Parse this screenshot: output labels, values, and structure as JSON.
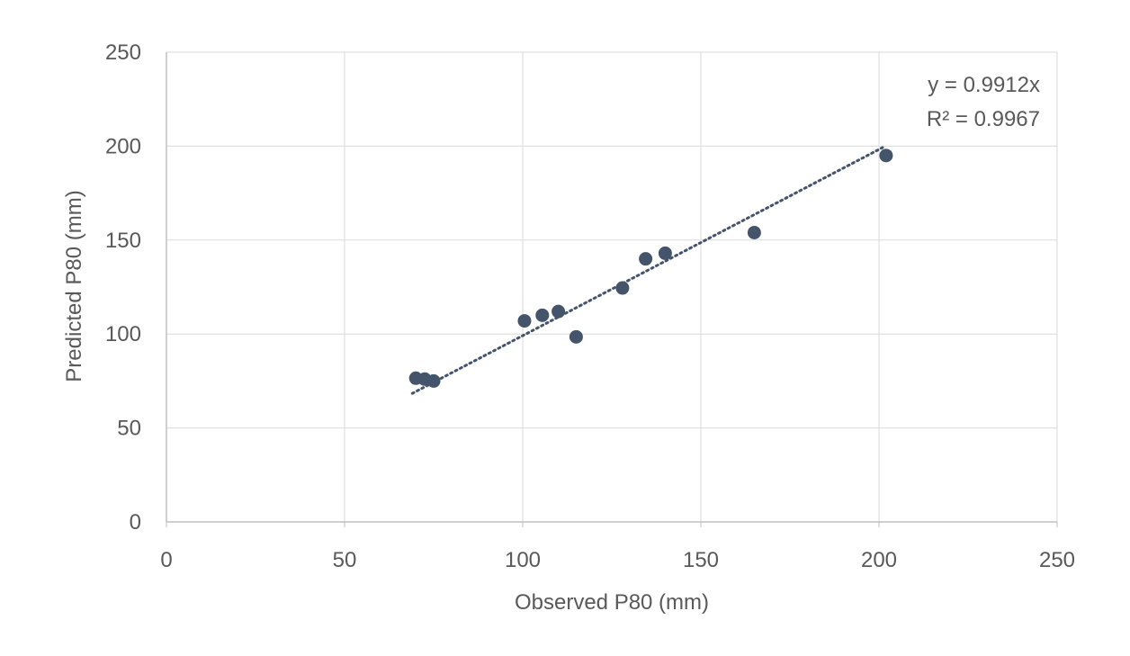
{
  "chart_data": {
    "type": "scatter",
    "title": "",
    "xlabel": "Observed P80 (mm)",
    "ylabel": "Predicted P80 (mm)",
    "xlim": [
      0,
      250
    ],
    "ylim": [
      0,
      250
    ],
    "x_ticks": [
      0,
      50,
      100,
      150,
      200,
      250
    ],
    "y_ticks": [
      0,
      50,
      100,
      150,
      200,
      250
    ],
    "grid": true,
    "legend": "none",
    "series": [
      {
        "points": [
          {
            "x": 70,
            "y": 76.5
          },
          {
            "x": 72.5,
            "y": 76
          },
          {
            "x": 75,
            "y": 75
          },
          {
            "x": 100.5,
            "y": 107
          },
          {
            "x": 105.5,
            "y": 110
          },
          {
            "x": 110,
            "y": 112
          },
          {
            "x": 115,
            "y": 98.5
          },
          {
            "x": 128,
            "y": 124.5
          },
          {
            "x": 134.5,
            "y": 140
          },
          {
            "x": 140,
            "y": 143
          },
          {
            "x": 165,
            "y": 154
          },
          {
            "x": 202,
            "y": 195
          }
        ],
        "color": "#44546A"
      }
    ],
    "trendline": {
      "type": "linear-through-origin",
      "slope": 0.9912,
      "x_range": [
        69,
        201
      ],
      "color": "#44546A",
      "style": "dotted"
    },
    "annotations": {
      "equation": "y = 0.9912x",
      "r_squared": "R² = 0.9967"
    },
    "colors": {
      "marker": "#44546A",
      "gridline": "#D9D9D9",
      "axis": "#BFBFBF",
      "text": "#595959"
    }
  }
}
